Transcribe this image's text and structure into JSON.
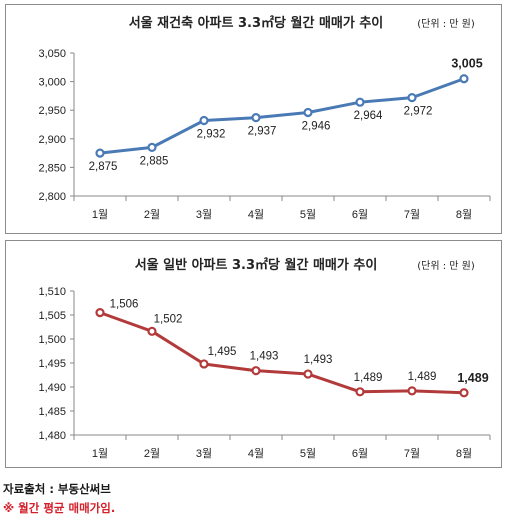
{
  "chart_data": [
    {
      "type": "line",
      "title": "서울 재건축 아파트 3.3㎡당 월간 매매가 추이",
      "unit": "(단위 : 만 원)",
      "categories": [
        "1월",
        "2월",
        "3월",
        "4월",
        "5월",
        "6월",
        "7월",
        "8월"
      ],
      "values": [
        2875,
        2885,
        2932,
        2937,
        2946,
        2964,
        2972,
        3005
      ],
      "value_labels": [
        "2,875",
        "2,885",
        "2,932",
        "2,937",
        "2,946",
        "2,964",
        "2,972",
        "3,005"
      ],
      "yticks": [
        "2,800",
        "2,850",
        "2,900",
        "2,950",
        "3,000",
        "3,050"
      ],
      "ylim": [
        2800,
        3050
      ],
      "color": "#4a7ab5",
      "grid": false
    },
    {
      "type": "line",
      "title": "서울 일반 아파트 3.3㎡당 월간 매매가 추이",
      "unit": "(단위 : 만 원)",
      "categories": [
        "1월",
        "2월",
        "3월",
        "4월",
        "5월",
        "6월",
        "7월",
        "8월"
      ],
      "values": [
        1505.5,
        1501.6,
        1494.8,
        1493.4,
        1492.7,
        1489.0,
        1489.2,
        1488.8
      ],
      "value_labels": [
        "1,506",
        "1,502",
        "1,495",
        "1,493",
        "1,493",
        "1,489",
        "1,489",
        "1,489"
      ],
      "yticks": [
        "1,480",
        "1,485",
        "1,490",
        "1,495",
        "1,500",
        "1,505",
        "1,510"
      ],
      "ylim": [
        1480,
        1510
      ],
      "color": "#b33a3a",
      "grid": false
    }
  ],
  "footer": {
    "source": "자료출처 : 부동산써브",
    "note": "※ 월간 평균 매매가임."
  }
}
